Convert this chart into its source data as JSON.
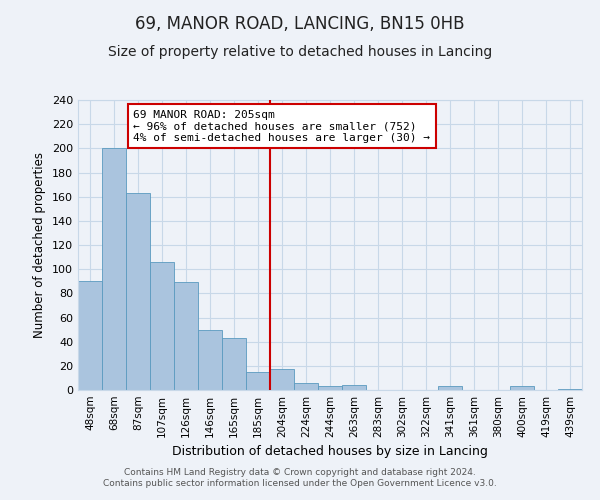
{
  "title": "69, MANOR ROAD, LANCING, BN15 0HB",
  "subtitle": "Size of property relative to detached houses in Lancing",
  "xlabel": "Distribution of detached houses by size in Lancing",
  "ylabel": "Number of detached properties",
  "bar_labels": [
    "48sqm",
    "68sqm",
    "87sqm",
    "107sqm",
    "126sqm",
    "146sqm",
    "165sqm",
    "185sqm",
    "204sqm",
    "224sqm",
    "244sqm",
    "263sqm",
    "283sqm",
    "302sqm",
    "322sqm",
    "341sqm",
    "361sqm",
    "380sqm",
    "400sqm",
    "419sqm",
    "439sqm"
  ],
  "bar_heights": [
    90,
    200,
    163,
    106,
    89,
    50,
    43,
    15,
    17,
    6,
    3,
    4,
    0,
    0,
    0,
    3,
    0,
    0,
    3,
    0,
    1
  ],
  "bar_color": "#aac4de",
  "bar_edge_color": "#5a9abf",
  "grid_color": "#c8d8e8",
  "background_color": "#eef2f8",
  "vline_color": "#cc0000",
  "annotation_title": "69 MANOR ROAD: 205sqm",
  "annotation_line1": "← 96% of detached houses are smaller (752)",
  "annotation_line2": "4% of semi-detached houses are larger (30) →",
  "annotation_box_color": "#ffffff",
  "annotation_border_color": "#cc0000",
  "ylim": [
    0,
    240
  ],
  "yticks": [
    0,
    20,
    40,
    60,
    80,
    100,
    120,
    140,
    160,
    180,
    200,
    220,
    240
  ],
  "footer1": "Contains HM Land Registry data © Crown copyright and database right 2024.",
  "footer2": "Contains public sector information licensed under the Open Government Licence v3.0.",
  "title_fontsize": 12,
  "subtitle_fontsize": 10
}
